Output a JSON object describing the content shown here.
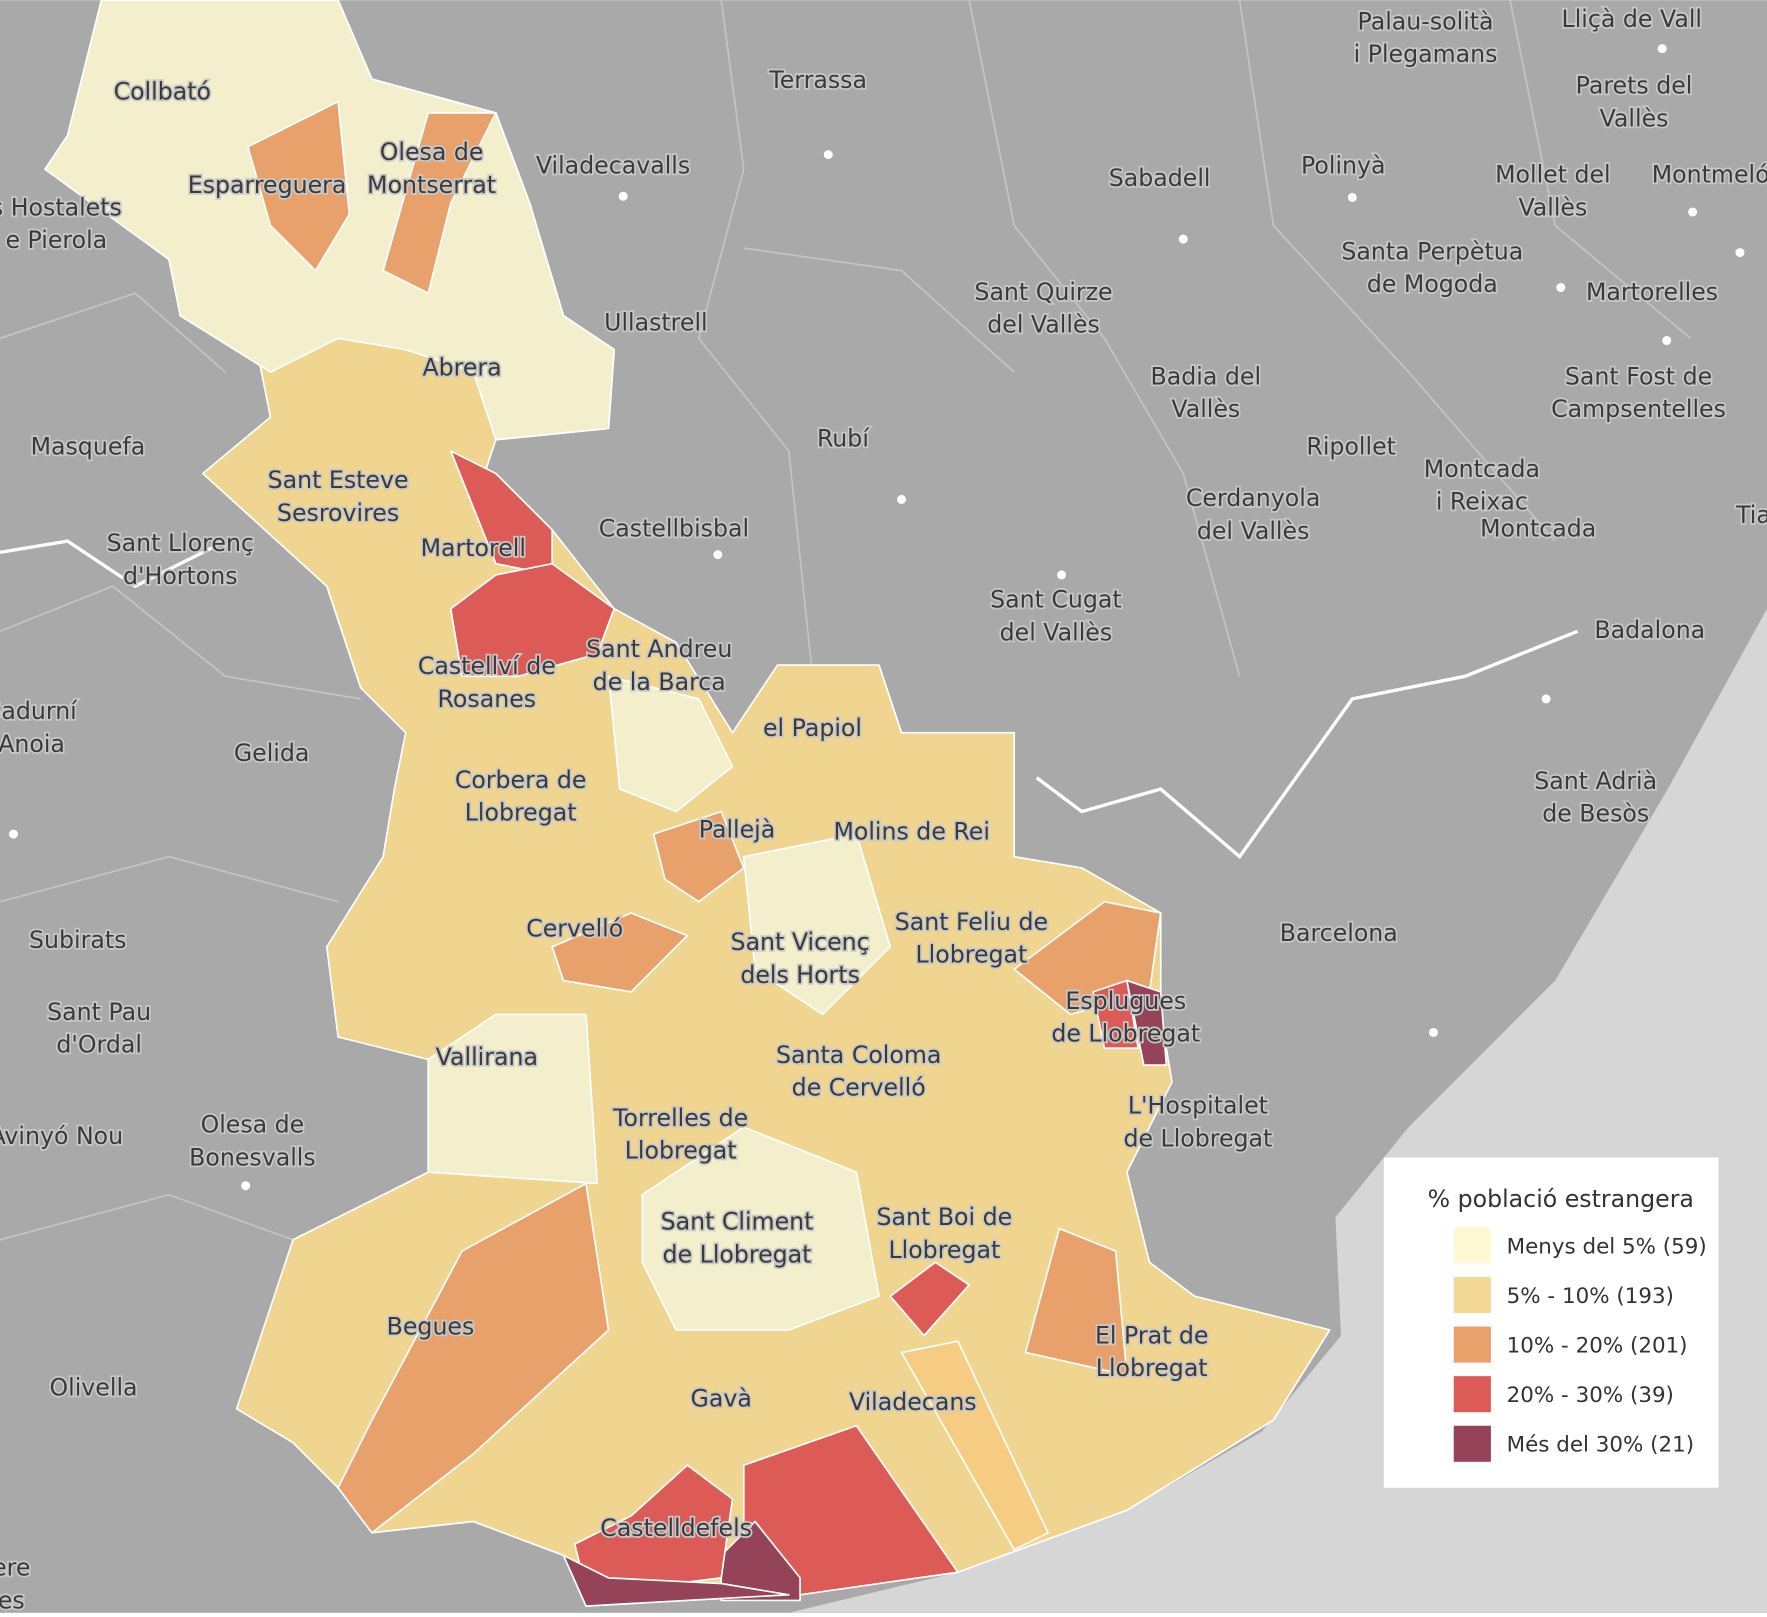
{
  "places": [
    [
      "Palau-solità",
      "i Plegamans"
    ],
    [
      "Lliçà de Vall"
    ],
    [
      "Terrassa"
    ],
    [
      "Parets del",
      "Vallès"
    ],
    [
      "Collbató"
    ],
    [
      "Olesa de",
      "Montserrat"
    ],
    [
      "Viladecavalls"
    ],
    [
      "Polinyà"
    ],
    [
      "Sabadell"
    ],
    [
      "Mollet del",
      "Vallès"
    ],
    [
      "Montmeló"
    ],
    [
      "Esparreguera"
    ],
    [
      "s Hostalets",
      "e Pierola"
    ],
    [
      "Santa Perpètua",
      "de Mogoda"
    ],
    [
      "Sant Quirze",
      "del Vallès"
    ],
    [
      "Martorelles"
    ],
    [
      "Ullastrell"
    ],
    [
      "Abrera"
    ],
    [
      "Badia del",
      "Vallès"
    ],
    [
      "Sant Fost de",
      "Campsentelles"
    ],
    [
      "Rubí"
    ],
    [
      "Masquefa"
    ],
    [
      "Ripollet"
    ],
    [
      "Montcada",
      "i Reixac"
    ],
    [
      "Sant Esteve",
      "Sesrovires"
    ],
    [
      "Cerdanyola",
      "del Vallès"
    ],
    [
      "Montcada"
    ],
    [
      "Tia"
    ],
    [
      "Castellbisbal"
    ],
    [
      "Sant Llorenç",
      "d'Hortons"
    ],
    [
      "Martorell"
    ],
    [
      "Sant Cugat",
      "del Vallès"
    ],
    [
      "Badalona"
    ],
    [
      "Castellví de",
      "Rosanes"
    ],
    [
      "Sant Andreu",
      "de la Barca"
    ],
    [
      "Sadurní",
      "Anoia"
    ],
    [
      "el Papiol"
    ],
    [
      "Gelida"
    ],
    [
      "Sant Adrià",
      "de Besòs"
    ],
    [
      "Corbera de",
      "Llobregat"
    ],
    [
      "Pallejà"
    ],
    [
      "Molins de Rei"
    ],
    [
      "Sant Feliu de",
      "Llobregat"
    ],
    [
      "Cervelló"
    ],
    [
      "Barcelona"
    ],
    [
      "Subirats"
    ],
    [
      "Sant Vicenç",
      "dels Horts"
    ],
    [
      "Esplugues",
      "de Llobregat"
    ],
    [
      "Sant Pau",
      "d'Ordal"
    ],
    [
      "Vallirana"
    ],
    [
      "Santa Coloma",
      "de Cervelló"
    ],
    [
      "L'Hospitalet",
      "de Llobregat"
    ],
    [
      "Torrelles de",
      "Llobregat"
    ],
    [
      "Olesa de",
      "Bonesvalls"
    ],
    [
      "Avinyó Nou"
    ],
    [
      "Sant Climent",
      "de Llobregat"
    ],
    [
      "Sant Boi de",
      "Llobregat"
    ],
    [
      "Begues"
    ],
    [
      "El Prat de",
      "Llobregat"
    ],
    [
      "Olivella"
    ],
    [
      "Gavà"
    ],
    [
      "Viladecans"
    ],
    [
      "Castelldefels"
    ],
    [
      "ere",
      "es"
    ]
  ],
  "legend": {
    "title": "% població estrangera",
    "items": [
      {
        "label": "Menys del 5% (59)",
        "color": "#fdf9d2"
      },
      {
        "label": "5% - 10% (193)",
        "color": "#f4d994"
      },
      {
        "label": "10% - 20% (201)",
        "color": "#e9a16c"
      },
      {
        "label": "20% - 30% (39)",
        "color": "#dc5b57"
      },
      {
        "label": "Més del 30% (21)",
        "color": "#954358"
      }
    ]
  }
}
